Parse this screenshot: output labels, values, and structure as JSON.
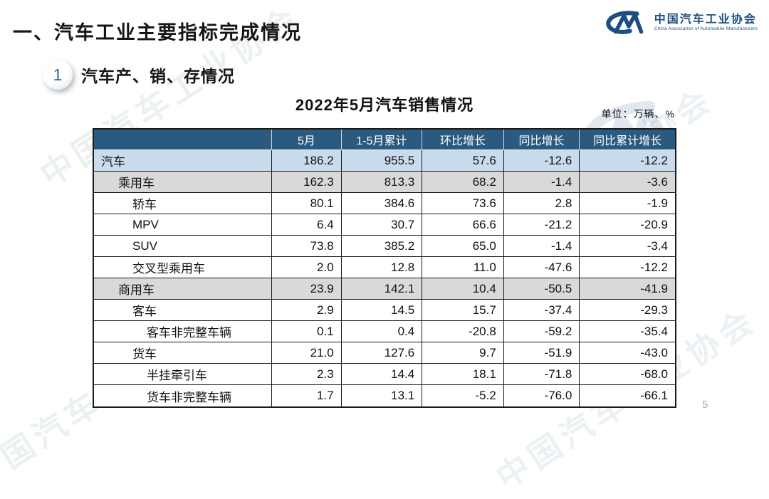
{
  "page": {
    "title": "一、汽车工业主要指标完成情况",
    "page_number": "5"
  },
  "logo": {
    "name_cn": "中国汽车工业协会",
    "name_en": "China Association of Automobile Manufacturers"
  },
  "section": {
    "number": "1",
    "title": "汽车产、销、存情况"
  },
  "watermark": {
    "text": "中国汽车工业协会"
  },
  "colors": {
    "header_bg": "#2a5a80",
    "highlight_row_bg": "#c9dcee",
    "subtotal_row_bg": "#d9d9d9",
    "logo_blue": "#1d4e80",
    "page_number_gray": "#a9a9a9"
  },
  "table": {
    "title": "2022年5月汽车销售情况",
    "unit_label": "单位：万辆、%",
    "columns": [
      "",
      "5月",
      "1-5月累计",
      "环比增长",
      "同比增长",
      "同比累计增长"
    ],
    "rows": [
      {
        "label": "汽车",
        "indent": 0,
        "style": "blue",
        "values": [
          "186.2",
          "955.5",
          "57.6",
          "-12.6",
          "-12.2"
        ]
      },
      {
        "label": "乘用车",
        "indent": 1,
        "style": "gray",
        "values": [
          "162.3",
          "813.3",
          "68.2",
          "-1.4",
          "-3.6"
        ]
      },
      {
        "label": "轿车",
        "indent": 2,
        "style": "",
        "values": [
          "80.1",
          "384.6",
          "73.6",
          "2.8",
          "-1.9"
        ]
      },
      {
        "label": "MPV",
        "indent": 2,
        "style": "",
        "values": [
          "6.4",
          "30.7",
          "66.6",
          "-21.2",
          "-20.9"
        ]
      },
      {
        "label": "SUV",
        "indent": 2,
        "style": "",
        "values": [
          "73.8",
          "385.2",
          "65.0",
          "-1.4",
          "-3.4"
        ]
      },
      {
        "label": "交叉型乘用车",
        "indent": 2,
        "style": "",
        "values": [
          "2.0",
          "12.8",
          "11.0",
          "-47.6",
          "-12.2"
        ]
      },
      {
        "label": "商用车",
        "indent": 1,
        "style": "gray",
        "values": [
          "23.9",
          "142.1",
          "10.4",
          "-50.5",
          "-41.9"
        ]
      },
      {
        "label": "客车",
        "indent": 2,
        "style": "",
        "values": [
          "2.9",
          "14.5",
          "15.7",
          "-37.4",
          "-29.3"
        ]
      },
      {
        "label": "客车非完整车辆",
        "indent": 3,
        "style": "",
        "values": [
          "0.1",
          "0.4",
          "-20.8",
          "-59.2",
          "-35.4"
        ]
      },
      {
        "label": "货车",
        "indent": 2,
        "style": "",
        "values": [
          "21.0",
          "127.6",
          "9.7",
          "-51.9",
          "-43.0"
        ]
      },
      {
        "label": "半挂牵引车",
        "indent": 3,
        "style": "",
        "values": [
          "2.3",
          "14.4",
          "18.1",
          "-71.8",
          "-68.0"
        ]
      },
      {
        "label": "货车非完整车辆",
        "indent": 3,
        "style": "",
        "values": [
          "1.7",
          "13.1",
          "-5.2",
          "-76.0",
          "-66.1"
        ]
      }
    ]
  }
}
